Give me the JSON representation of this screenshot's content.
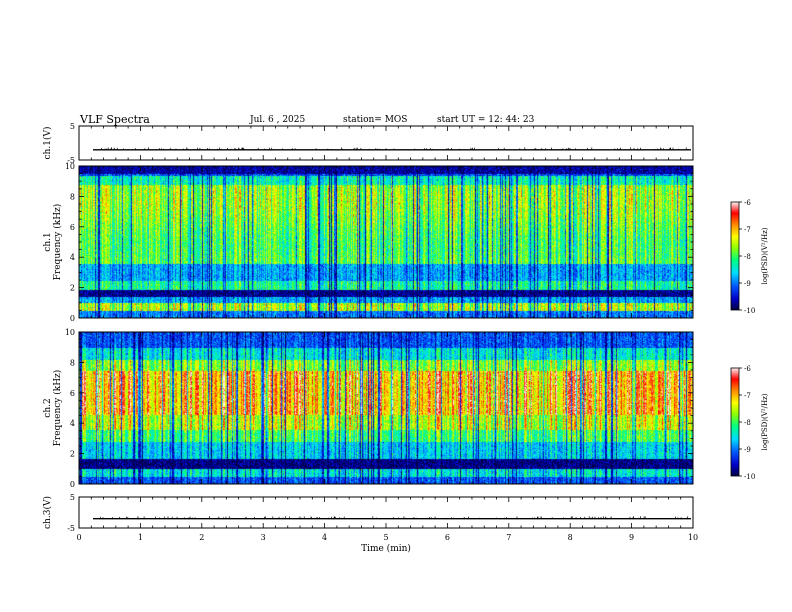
{
  "chart_data": {
    "type": "heatmap",
    "title": "VLF Spectra",
    "date": "Jul. 6 , 2025",
    "station": "station= MOS",
    "start_ut": "start  UT =  12: 44: 23",
    "xlabel": "Time  (min)",
    "xlim": [
      0,
      10
    ],
    "x_ticks": [
      "0",
      "1",
      "2",
      "3",
      "4",
      "5",
      "6",
      "7",
      "8",
      "9",
      "10"
    ],
    "panels": [
      {
        "kind": "waveform",
        "ylabel": "ch.1(V)",
        "ylim": [
          -5,
          5
        ],
        "y_ticks": [
          "5",
          "-5"
        ],
        "baseline": -2
      },
      {
        "kind": "spectrogram",
        "ylabel_top": "ch.1",
        "ylabel": "Frequency  (kHz)",
        "ylim": [
          0,
          10
        ],
        "y_ticks": [
          "0",
          "2",
          "4",
          "6",
          "8",
          "10"
        ]
      },
      {
        "kind": "spectrogram",
        "ylabel_top": "ch.2",
        "ylabel": "Frequency  (kHz)",
        "ylim": [
          0,
          10
        ],
        "y_ticks": [
          "0",
          "2",
          "4",
          "6",
          "8",
          "10"
        ]
      },
      {
        "kind": "waveform",
        "ylabel": "ch.3(V)",
        "ylim": [
          -5,
          5
        ],
        "y_ticks": [
          "5",
          "-5"
        ],
        "baseline": -2
      }
    ],
    "colorbar": {
      "label": "log(PSD)(V²/Hz)",
      "range": [
        -10,
        -6
      ],
      "ticks": [
        "-6",
        "-7",
        "-8",
        "-9",
        "-10"
      ],
      "colors": [
        "#000080",
        "#0000ff",
        "#00c8ff",
        "#00ff80",
        "#ffff00",
        "#ff8000",
        "#ff0000",
        "#ffffff"
      ]
    }
  }
}
